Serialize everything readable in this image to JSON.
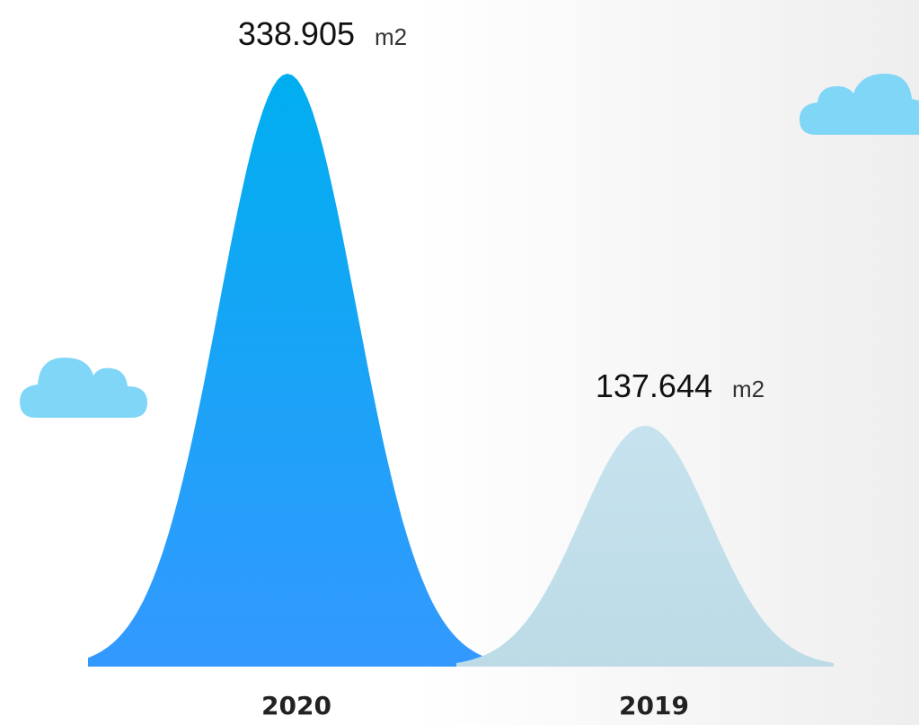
{
  "chart_data": {
    "type": "mountain",
    "categories": [
      "2020",
      "2019"
    ],
    "values": [
      338.905,
      137.644
    ],
    "unit": "m2",
    "colors": [
      [
        "#00aeef",
        "#3399ff"
      ],
      [
        "#c6e2ee",
        "#bcdbe6"
      ]
    ]
  }
}
